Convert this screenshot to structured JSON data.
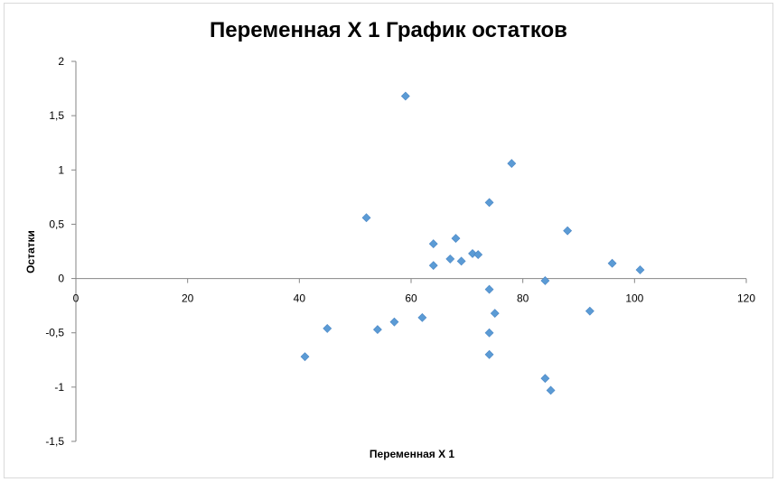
{
  "chart_data": {
    "type": "scatter",
    "title": "Переменная X 1 График остатков",
    "xlabel": "Переменная X 1",
    "ylabel": "Остатки",
    "xlim": [
      0,
      120
    ],
    "ylim": [
      -1.5,
      2
    ],
    "x_ticks": [
      0,
      20,
      40,
      60,
      80,
      100,
      120
    ],
    "x_tick_labels": [
      "0",
      "20",
      "40",
      "60",
      "80",
      "100",
      "120"
    ],
    "y_ticks": [
      -1.5,
      -1,
      -0.5,
      0,
      0.5,
      1,
      1.5,
      2
    ],
    "y_tick_labels": [
      "-1,5",
      "-1",
      "-0,5",
      "0",
      "0,5",
      "1",
      "1,5",
      "2"
    ],
    "grid": false,
    "legend": "none",
    "marker_color": "#5B9BD5",
    "series": [
      {
        "points": [
          {
            "x": 59,
            "y": 1.68
          },
          {
            "x": 78,
            "y": 1.06
          },
          {
            "x": 74,
            "y": 0.7
          },
          {
            "x": 52,
            "y": 0.56
          },
          {
            "x": 88,
            "y": 0.44
          },
          {
            "x": 68,
            "y": 0.37
          },
          {
            "x": 64,
            "y": 0.32
          },
          {
            "x": 71,
            "y": 0.23
          },
          {
            "x": 72,
            "y": 0.22
          },
          {
            "x": 67,
            "y": 0.18
          },
          {
            "x": 69,
            "y": 0.16
          },
          {
            "x": 96,
            "y": 0.14
          },
          {
            "x": 64,
            "y": 0.12
          },
          {
            "x": 101,
            "y": 0.08
          },
          {
            "x": 84,
            "y": -0.02
          },
          {
            "x": 74,
            "y": -0.1
          },
          {
            "x": 92,
            "y": -0.3
          },
          {
            "x": 75,
            "y": -0.32
          },
          {
            "x": 62,
            "y": -0.36
          },
          {
            "x": 57,
            "y": -0.4
          },
          {
            "x": 45,
            "y": -0.46
          },
          {
            "x": 54,
            "y": -0.47
          },
          {
            "x": 74,
            "y": -0.5
          },
          {
            "x": 74,
            "y": -0.7
          },
          {
            "x": 41,
            "y": -0.72
          },
          {
            "x": 84,
            "y": -0.92
          },
          {
            "x": 85,
            "y": -1.03
          }
        ]
      }
    ]
  }
}
